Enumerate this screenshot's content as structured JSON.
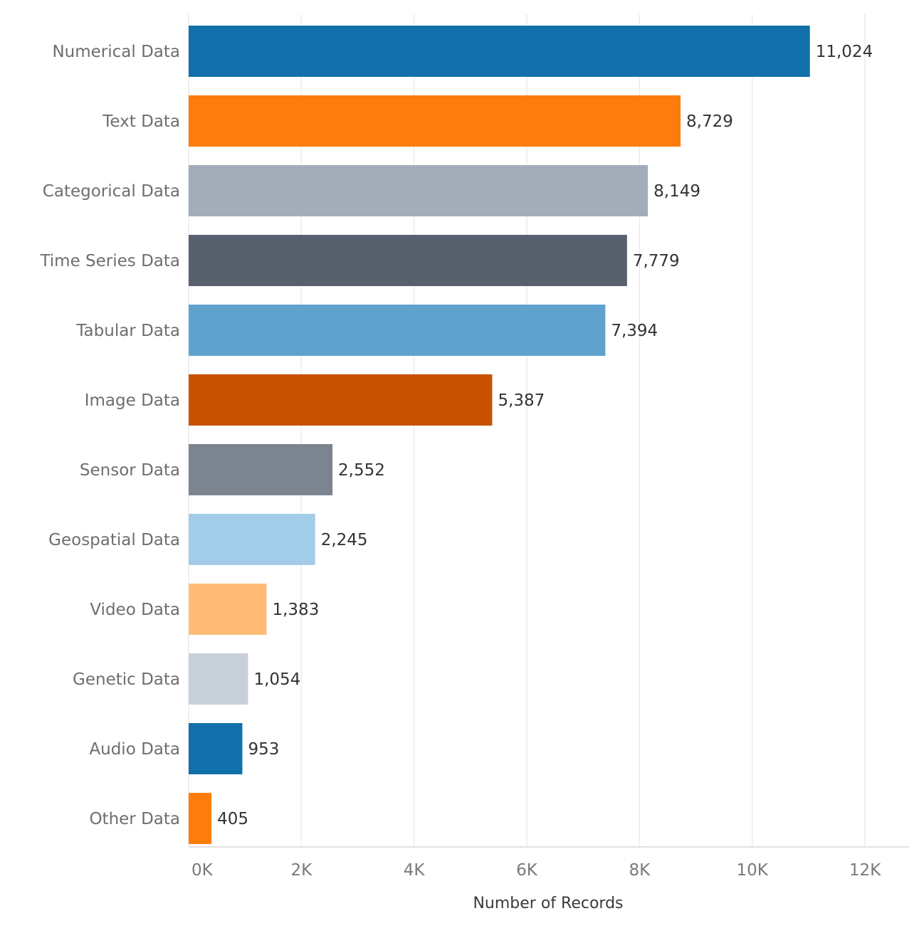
{
  "chart_data": {
    "type": "bar",
    "orientation": "horizontal",
    "categories": [
      "Numerical Data",
      "Text Data",
      "Categorical Data",
      "Time Series Data",
      "Tabular Data",
      "Image Data",
      "Sensor Data",
      "Geospatial Data",
      "Video Data",
      "Genetic Data",
      "Audio Data",
      "Other Data"
    ],
    "values": [
      11024,
      8729,
      8149,
      7779,
      7394,
      5387,
      2552,
      2245,
      1383,
      1054,
      953,
      405
    ],
    "value_labels": [
      "11,024",
      "8,729",
      "8,149",
      "7,779",
      "7,394",
      "5,387",
      "2,552",
      "2,245",
      "1,383",
      "1,054",
      "953",
      "405"
    ],
    "colors": [
      "#1170aa",
      "#fc7d0b",
      "#a3acb9",
      "#57606c",
      "#5fa2ce",
      "#c85200",
      "#7b848f",
      "#a3cce9",
      "#ffbc79",
      "#c8d0d9",
      "#1170aa",
      "#fc7d0b"
    ],
    "xlabel": "Number of Records",
    "ylabel": "",
    "xlim": [
      0,
      12000
    ],
    "ticks": [
      0,
      2000,
      4000,
      6000,
      8000,
      10000,
      12000
    ],
    "tick_labels": [
      "0K",
      "2K",
      "4K",
      "6K",
      "8K",
      "10K",
      "12K"
    ],
    "grid": true,
    "legend": "none"
  }
}
